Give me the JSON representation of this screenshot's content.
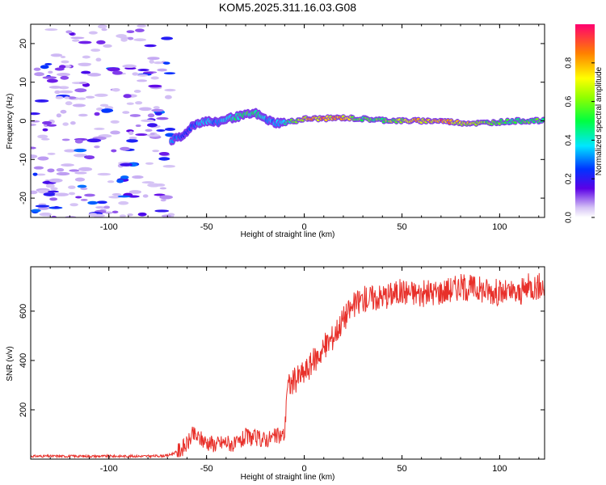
{
  "figure": {
    "title": "KOM5.2025.311.16.03.G08"
  },
  "chart_data": [
    {
      "type": "heatmap",
      "xlabel": "Height of straight line (km)",
      "ylabel": "Frequency (Hz)",
      "xlim": [
        -140,
        123
      ],
      "ylim": [
        -25,
        25
      ],
      "xticks": [
        -100,
        -50,
        0,
        50,
        100
      ],
      "yticks": [
        -20,
        -10,
        0,
        10,
        20
      ],
      "xtick_labels": [
        "-100",
        "-50",
        "0",
        "50",
        "100"
      ],
      "ytick_labels": [
        "-20",
        "-10",
        "0",
        "10",
        "20"
      ],
      "colorbar": {
        "label": "Normalized spectral amplitude",
        "range": [
          0,
          1
        ],
        "ticks": [
          0.0,
          0.2,
          0.4,
          0.6,
          0.8
        ],
        "tick_labels": [
          "0.0",
          "0.2",
          "0.4",
          "0.6",
          "0.8"
        ]
      },
      "ridge_x": [
        -68,
        -62,
        -58,
        -54,
        -50,
        -45,
        -40,
        -35,
        -30,
        -25,
        -20,
        -15,
        -10,
        -5,
        0,
        10,
        20,
        30,
        40,
        50,
        60,
        70,
        80,
        90,
        100,
        110,
        123
      ],
      "ridge_freq": [
        -5.0,
        -4.0,
        -1.5,
        -0.5,
        0.0,
        -0.5,
        0.5,
        1.0,
        1.5,
        2.0,
        0.5,
        -0.5,
        -0.5,
        0.0,
        0.5,
        0.6,
        0.8,
        0.5,
        0.2,
        0.0,
        0.0,
        0.0,
        -0.5,
        -0.6,
        -0.3,
        0.0,
        0.0
      ],
      "ridge_amplitude": [
        0.35,
        0.3,
        0.25,
        0.35,
        0.4,
        0.35,
        0.45,
        0.5,
        0.55,
        0.5,
        0.4,
        0.35,
        0.45,
        0.6,
        0.85,
        0.9,
        0.8,
        0.55,
        0.6,
        0.7,
        0.85,
        0.9,
        0.8,
        0.65,
        0.6,
        0.55,
        0.6
      ],
      "noise_x_range": [
        -140,
        -68
      ],
      "noise_amplitude_range": [
        0.05,
        0.3
      ]
    },
    {
      "type": "line",
      "xlabel": "Height of straight line (km)",
      "ylabel": "SNR (v/v)",
      "xlim": [
        -140,
        123
      ],
      "ylim": [
        0,
        780
      ],
      "xticks": [
        -100,
        -50,
        0,
        50,
        100
      ],
      "yticks": [
        200,
        400,
        600
      ],
      "xtick_labels": [
        "-100",
        "-50",
        "0",
        "50",
        "100"
      ],
      "ytick_labels": [
        "200",
        "400",
        "600"
      ],
      "series": [
        {
          "name": "SNR",
          "color": "#e8302a",
          "x": [
            -140,
            -120,
            -100,
            -80,
            -70,
            -65,
            -60,
            -57,
            -55,
            -50,
            -45,
            -40,
            -35,
            -30,
            -25,
            -20,
            -15,
            -10,
            -9,
            -5,
            0,
            5,
            10,
            15,
            20,
            25,
            30,
            40,
            50,
            60,
            70,
            80,
            90,
            100,
            110,
            115,
            123
          ],
          "y": [
            12,
            12,
            12,
            12,
            14,
            30,
            60,
            100,
            90,
            70,
            60,
            70,
            55,
            90,
            85,
            80,
            90,
            100,
            290,
            320,
            350,
            400,
            450,
            500,
            570,
            620,
            650,
            660,
            680,
            670,
            680,
            700,
            690,
            675,
            670,
            700,
            700
          ]
        }
      ]
    }
  ]
}
